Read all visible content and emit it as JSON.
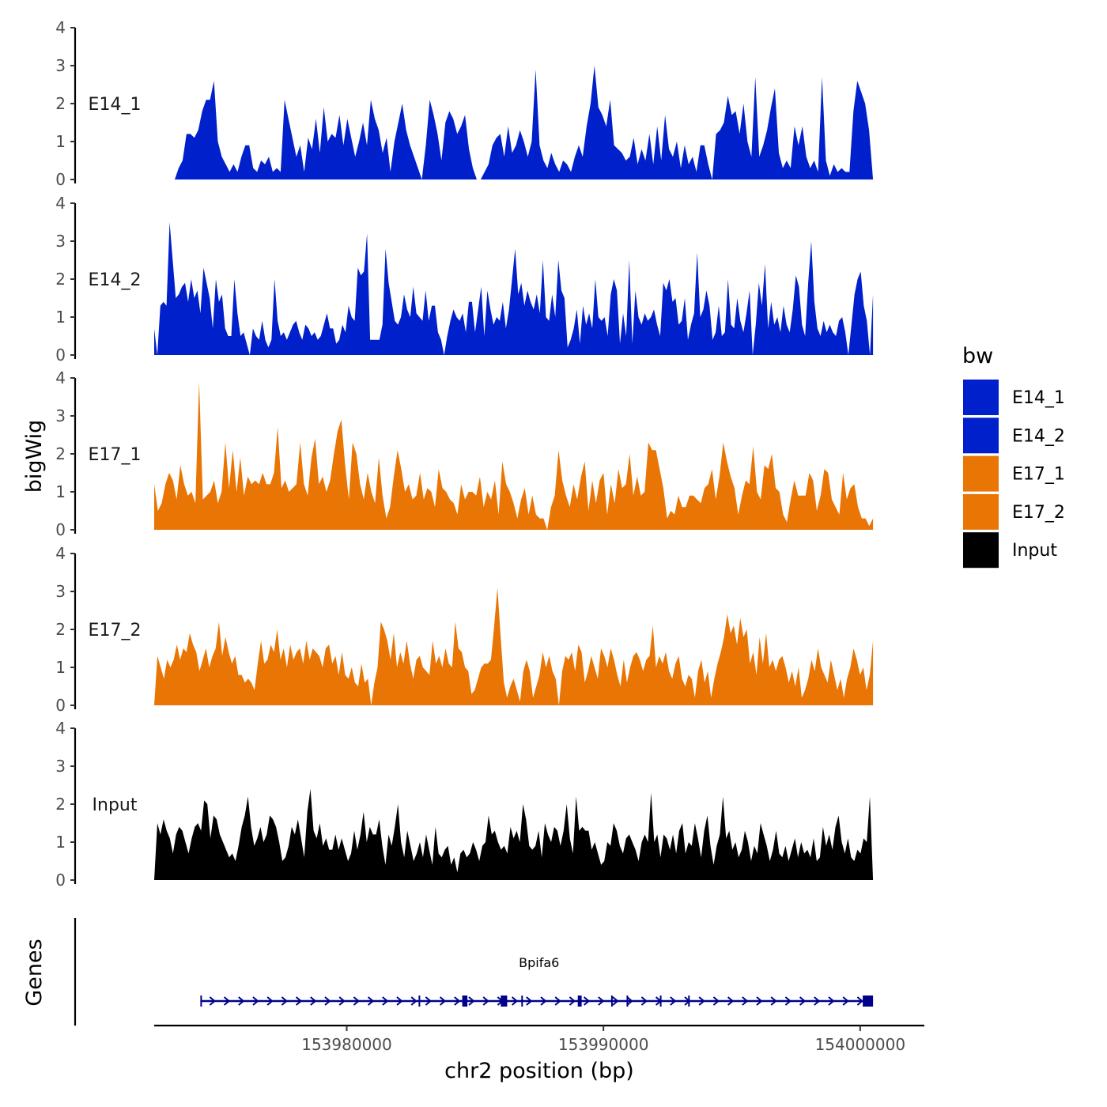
{
  "chart_data": {
    "type": "area",
    "title": "",
    "xlabel": "chr2 position (bp)",
    "ylabel": "bigWig",
    "genes_label": "Genes",
    "xlim": [
      153972500,
      154002500
    ],
    "ylim": [
      0,
      4
    ],
    "x_ticks": [
      153980000,
      153990000,
      154000000
    ],
    "x_tick_labels": [
      "153980000",
      "153990000",
      "154000000"
    ],
    "y_ticks": [
      0,
      1,
      2,
      3,
      4
    ],
    "y_tick_labels": [
      "0",
      "1",
      "2",
      "3",
      "4"
    ],
    "legend_title": "bw",
    "legend": [
      {
        "label": "E14_1",
        "color": "#0020CC"
      },
      {
        "label": "E14_2",
        "color": "#0020CC"
      },
      {
        "label": "E17_1",
        "color": "#E87504"
      },
      {
        "label": "E17_2",
        "color": "#E87504"
      },
      {
        "label": "Input",
        "color": "#000000"
      }
    ],
    "series": [
      {
        "name": "E14_1",
        "color": "#0020CC",
        "x_start": 153973300,
        "x_end": 154000500,
        "values": [
          0.0,
          0.3,
          0.5,
          1.2,
          1.2,
          1.1,
          1.3,
          1.8,
          2.1,
          2.1,
          2.6,
          1.0,
          0.6,
          0.4,
          0.2,
          0.4,
          0.2,
          0.6,
          0.9,
          0.9,
          0.3,
          0.2,
          0.5,
          0.4,
          0.6,
          0.2,
          0.3,
          0.2,
          2.1,
          1.6,
          1.1,
          0.6,
          0.9,
          0.2,
          1.1,
          0.8,
          1.6,
          0.7,
          1.9,
          1.0,
          1.2,
          1.1,
          1.7,
          0.9,
          1.6,
          1.1,
          0.6,
          1.0,
          1.5,
          0.9,
          2.1,
          1.6,
          1.3,
          0.7,
          1.1,
          0.2,
          1.0,
          1.5,
          2.0,
          1.3,
          0.9,
          0.6,
          0.3,
          0.0,
          0.9,
          2.1,
          1.7,
          1.2,
          0.5,
          1.5,
          1.8,
          1.6,
          1.2,
          1.4,
          1.7,
          0.8,
          0.3,
          0.0,
          0.0,
          0.2,
          0.4,
          0.9,
          1.1,
          1.2,
          0.6,
          1.4,
          0.7,
          0.9,
          1.3,
          1.0,
          0.6,
          1.0,
          2.9,
          0.9,
          0.5,
          0.3,
          0.7,
          0.4,
          0.2,
          0.5,
          0.4,
          0.2,
          0.6,
          0.9,
          0.6,
          1.4,
          2.0,
          3.0,
          1.9,
          1.7,
          1.4,
          2.1,
          0.9,
          0.8,
          0.7,
          0.5,
          0.6,
          1.1,
          0.4,
          0.8,
          0.5,
          1.2,
          0.4,
          1.4,
          0.5,
          1.7,
          0.8,
          0.6,
          1.0,
          0.3,
          0.9,
          0.4,
          0.6,
          0.2,
          0.9,
          0.9,
          0.4,
          0.0,
          1.2,
          1.3,
          1.5,
          2.2,
          1.7,
          1.8,
          1.2,
          2.0,
          1.0,
          0.6,
          2.7,
          0.6,
          0.9,
          1.3,
          1.9,
          2.4,
          0.7,
          0.3,
          0.5,
          0.3,
          1.4,
          0.9,
          1.4,
          0.6,
          0.3,
          0.5,
          0.2,
          2.7,
          0.5,
          0.1,
          0.4,
          0.2,
          0.3,
          0.2,
          0.2,
          1.8,
          2.6,
          2.3,
          2.0,
          1.3,
          0.0
        ]
      },
      {
        "name": "E14_2",
        "color": "#0020CC",
        "x_start": 153972500,
        "x_end": 154000500,
        "values": [
          0.7,
          0.0,
          1.3,
          1.4,
          1.3,
          3.5,
          2.5,
          1.5,
          1.6,
          1.8,
          1.9,
          1.4,
          2.0,
          1.5,
          1.7,
          1.1,
          2.3,
          1.9,
          1.5,
          0.7,
          2.0,
          1.4,
          1.6,
          0.7,
          0.5,
          0.5,
          2.0,
          1.1,
          0.5,
          0.6,
          0.3,
          0.0,
          0.7,
          0.5,
          0.4,
          0.9,
          0.4,
          0.2,
          0.4,
          2.0,
          0.9,
          0.5,
          0.6,
          0.4,
          0.6,
          0.8,
          0.9,
          0.6,
          0.4,
          0.8,
          0.7,
          0.5,
          0.6,
          0.4,
          0.5,
          0.8,
          1.1,
          0.7,
          0.7,
          0.3,
          0.4,
          0.8,
          0.6,
          1.3,
          1.0,
          0.9,
          2.3,
          2.1,
          2.2,
          3.2,
          0.4,
          0.4,
          0.4,
          0.4,
          0.8,
          2.8,
          1.9,
          1.4,
          0.9,
          0.8,
          1.0,
          1.6,
          1.2,
          1.0,
          1.8,
          1.1,
          1.0,
          0.9,
          1.7,
          0.9,
          1.3,
          1.3,
          0.6,
          0.4,
          0.0,
          0.5,
          0.9,
          1.2,
          1.0,
          0.9,
          1.1,
          0.6,
          1.4,
          1.4,
          0.6,
          1.2,
          1.8,
          0.5,
          1.7,
          1.2,
          0.8,
          1.0,
          0.9,
          1.4,
          0.7,
          1.2,
          2.0,
          2.8,
          1.6,
          1.9,
          1.3,
          1.7,
          1.4,
          1.2,
          1.6,
          1.1,
          2.5,
          1.0,
          0.9,
          1.6,
          1.0,
          2.5,
          1.7,
          1.5,
          0.2,
          0.4,
          0.7,
          1.2,
          0.3,
          1.3,
          0.8,
          1.1,
          0.7,
          2.0,
          1.0,
          0.9,
          1.0,
          0.5,
          1.6,
          2.0,
          1.7,
          0.3,
          1.1,
          0.5,
          2.5,
          0.3,
          1.7,
          1.0,
          0.8,
          1.1,
          0.9,
          1.0,
          1.2,
          0.8,
          0.5,
          1.9,
          1.7,
          2.0,
          1.4,
          1.5,
          0.8,
          0.9,
          1.5,
          0.4,
          0.8,
          1.1,
          2.7,
          1.0,
          1.2,
          1.7,
          1.3,
          0.4,
          0.6,
          1.3,
          0.5,
          0.6,
          2.0,
          0.8,
          0.7,
          1.5,
          0.9,
          0.6,
          1.1,
          1.7,
          0.0,
          0.8,
          1.9,
          1.3,
          2.4,
          0.7,
          1.4,
          0.8,
          1.0,
          0.6,
          1.3,
          0.8,
          0.6,
          1.2,
          2.1,
          1.8,
          0.8,
          0.5,
          1.9,
          3.0,
          1.4,
          0.7,
          0.5,
          0.9,
          0.6,
          0.8,
          0.6,
          0.5,
          0.9,
          1.0,
          0.6,
          0.0,
          0.8,
          1.6,
          2.0,
          2.2,
          1.3,
          0.9,
          0.0,
          1.6
        ]
      },
      {
        "name": "E17_1",
        "color": "#E87504",
        "x_start": 153972500,
        "x_end": 154000500,
        "values": [
          1.2,
          0.5,
          0.7,
          1.2,
          1.5,
          1.3,
          0.8,
          1.7,
          1.2,
          0.9,
          1.0,
          0.7,
          3.9,
          0.8,
          0.9,
          1.0,
          1.3,
          0.7,
          1.0,
          2.3,
          1.1,
          2.1,
          1.0,
          1.9,
          0.9,
          1.4,
          1.2,
          1.3,
          1.2,
          1.5,
          1.2,
          1.2,
          1.5,
          2.7,
          1.1,
          1.3,
          1.0,
          1.1,
          1.2,
          2.3,
          1.2,
          0.9,
          1.9,
          2.4,
          1.2,
          1.4,
          1.0,
          1.3,
          2.0,
          2.6,
          2.9,
          1.7,
          0.8,
          2.3,
          2.0,
          1.2,
          0.8,
          1.5,
          1.0,
          0.7,
          1.9,
          0.9,
          0.3,
          0.6,
          1.4,
          2.1,
          1.6,
          1.0,
          1.2,
          0.8,
          0.9,
          1.5,
          0.8,
          1.1,
          1.0,
          0.6,
          1.6,
          1.1,
          1.0,
          0.8,
          0.7,
          0.4,
          1.2,
          0.8,
          1.0,
          1.0,
          0.9,
          1.4,
          0.6,
          1.0,
          0.8,
          1.3,
          0.4,
          1.8,
          1.2,
          1.0,
          0.7,
          0.3,
          0.8,
          1.1,
          0.4,
          0.9,
          0.4,
          0.3,
          0.3,
          0.0,
          0.6,
          0.9,
          2.1,
          1.3,
          0.9,
          0.6,
          1.2,
          0.8,
          1.4,
          1.8,
          0.5,
          1.3,
          0.7,
          1.3,
          1.5,
          0.4,
          1.2,
          0.7,
          1.6,
          1.1,
          1.2,
          2.0,
          0.9,
          1.4,
          0.9,
          1.0,
          2.3,
          2.1,
          2.1,
          1.6,
          1.1,
          0.3,
          0.5,
          0.4,
          0.9,
          0.6,
          0.6,
          0.9,
          0.9,
          0.8,
          0.7,
          1.1,
          1.2,
          1.6,
          0.8,
          1.4,
          2.3,
          1.8,
          1.4,
          1.1,
          0.4,
          0.9,
          1.3,
          1.2,
          2.2,
          1.0,
          0.8,
          1.7,
          1.6,
          2.0,
          1.1,
          1.0,
          0.4,
          0.2,
          0.8,
          1.3,
          0.9,
          0.9,
          0.9,
          1.5,
          1.3,
          0.5,
          0.9,
          1.6,
          1.5,
          0.8,
          0.6,
          0.4,
          1.5,
          0.8,
          1.1,
          1.2,
          0.6,
          0.3,
          0.3,
          0.1,
          0.3
        ]
      },
      {
        "name": "E17_2",
        "color": "#E87504",
        "x_start": 153972500,
        "x_end": 154000500,
        "values": [
          0.0,
          1.3,
          1.0,
          0.7,
          1.2,
          1.0,
          1.2,
          1.6,
          1.2,
          1.5,
          1.4,
          1.9,
          1.6,
          1.4,
          0.9,
          1.2,
          1.5,
          1.0,
          1.3,
          1.5,
          2.2,
          1.3,
          1.8,
          1.4,
          1.1,
          1.3,
          0.8,
          0.8,
          0.6,
          0.7,
          0.6,
          0.4,
          1.1,
          1.7,
          1.1,
          1.2,
          1.6,
          1.4,
          2.0,
          1.2,
          1.5,
          1.0,
          1.6,
          1.2,
          1.4,
          1.5,
          1.1,
          1.7,
          1.2,
          1.5,
          1.4,
          1.3,
          1.0,
          1.5,
          1.6,
          1.1,
          1.3,
          0.8,
          1.4,
          0.8,
          0.7,
          1.0,
          0.6,
          0.5,
          1.1,
          0.6,
          0.7,
          0.0,
          0.6,
          1.0,
          2.2,
          2.0,
          1.7,
          1.2,
          1.9,
          1.0,
          1.4,
          1.1,
          1.7,
          1.1,
          0.7,
          1.2,
          1.3,
          1.0,
          0.9,
          0.8,
          1.7,
          1.1,
          1.3,
          1.0,
          1.5,
          1.1,
          1.0,
          2.2,
          1.5,
          1.4,
          1.0,
          0.9,
          0.3,
          0.4,
          0.7,
          1.0,
          1.1,
          1.1,
          1.2,
          2.1,
          3.1,
          1.8,
          0.6,
          0.2,
          0.5,
          0.7,
          0.4,
          0.1,
          0.9,
          1.2,
          0.9,
          0.2,
          0.5,
          0.8,
          1.4,
          1.0,
          1.3,
          0.9,
          0.7,
          0.0,
          0.9,
          1.3,
          1.2,
          1.4,
          0.9,
          1.6,
          1.4,
          0.6,
          0.9,
          1.3,
          1.0,
          0.7,
          1.5,
          1.3,
          1.0,
          1.5,
          1.2,
          0.8,
          0.5,
          1.2,
          0.6,
          1.0,
          1.3,
          1.4,
          1.2,
          0.9,
          1.2,
          1.3,
          2.1,
          1.0,
          1.3,
          1.1,
          1.4,
          0.9,
          0.7,
          1.1,
          1.3,
          0.7,
          0.5,
          0.8,
          0.7,
          0.2,
          0.9,
          1.2,
          0.6,
          0.9,
          0.2,
          0.7,
          1.1,
          1.4,
          1.8,
          2.4,
          1.9,
          2.1,
          1.6,
          2.3,
          1.8,
          2.0,
          1.1,
          1.4,
          0.8,
          1.8,
          1.1,
          1.9,
          1.0,
          1.2,
          0.9,
          1.2,
          1.3,
          1.0,
          0.6,
          0.9,
          0.5,
          1.0,
          0.2,
          0.4,
          0.7,
          1.2,
          0.9,
          1.5,
          1.0,
          0.8,
          0.6,
          1.2,
          0.8,
          0.4,
          0.7,
          0.2,
          0.7,
          1.0,
          1.5,
          1.2,
          0.8,
          1.0,
          0.4,
          0.8,
          1.7
        ]
      },
      {
        "name": "Input",
        "color": "#000000",
        "x_start": 153972500,
        "x_end": 154000500,
        "values": [
          0.0,
          1.5,
          1.2,
          1.6,
          1.3,
          1.1,
          0.7,
          1.2,
          1.4,
          1.3,
          1.0,
          0.7,
          1.1,
          1.4,
          1.5,
          1.3,
          2.1,
          2.0,
          1.1,
          1.7,
          1.6,
          1.2,
          1.0,
          0.8,
          0.6,
          0.7,
          0.5,
          0.9,
          1.4,
          1.7,
          2.2,
          1.4,
          0.9,
          1.1,
          1.4,
          1.0,
          1.2,
          1.7,
          1.6,
          1.4,
          1.0,
          0.5,
          0.6,
          0.9,
          1.4,
          1.2,
          1.6,
          1.1,
          0.6,
          1.8,
          2.4,
          1.3,
          1.1,
          1.5,
          0.9,
          1.1,
          0.8,
          0.8,
          1.2,
          0.8,
          1.1,
          0.8,
          0.5,
          0.7,
          1.3,
          0.8,
          1.2,
          1.8,
          1.0,
          1.4,
          1.2,
          1.2,
          1.6,
          0.9,
          0.4,
          1.2,
          0.9,
          1.4,
          2.0,
          1.0,
          0.6,
          1.3,
          0.9,
          0.5,
          0.7,
          1.0,
          0.6,
          1.2,
          0.8,
          0.4,
          1.4,
          0.7,
          0.6,
          0.8,
          0.9,
          0.4,
          0.6,
          0.2,
          0.7,
          0.8,
          0.6,
          0.7,
          1.0,
          0.8,
          0.5,
          0.9,
          1.0,
          1.7,
          1.2,
          1.3,
          1.0,
          0.8,
          0.9,
          0.7,
          1.4,
          1.1,
          1.3,
          1.0,
          2.0,
          1.6,
          0.9,
          0.8,
          0.9,
          1.3,
          0.6,
          1.5,
          1.2,
          1.0,
          1.4,
          1.3,
          0.9,
          1.3,
          2.0,
          1.1,
          0.7,
          2.2,
          1.3,
          1.4,
          1.3,
          1.3,
          0.8,
          1.0,
          0.7,
          0.4,
          0.5,
          1.0,
          0.9,
          1.5,
          1.3,
          0.9,
          0.7,
          1.1,
          1.2,
          1.0,
          0.8,
          0.5,
          1.0,
          1.2,
          1.0,
          2.3,
          1.0,
          1.2,
          0.6,
          1.2,
          1.1,
          0.8,
          1.2,
          0.7,
          1.3,
          1.5,
          0.7,
          1.0,
          0.9,
          1.5,
          1.1,
          0.6,
          1.3,
          1.7,
          0.9,
          0.4,
          0.9,
          1.2,
          2.2,
          1.1,
          1.3,
          0.8,
          1.0,
          0.6,
          0.8,
          1.3,
          1.0,
          0.5,
          0.9,
          0.7,
          1.5,
          1.2,
          0.9,
          0.5,
          0.8,
          1.3,
          0.7,
          0.6,
          0.9,
          0.5,
          0.8,
          1.1,
          0.6,
          1.0,
          0.7,
          0.8,
          0.6,
          1.1,
          0.5,
          0.6,
          1.4,
          0.9,
          1.2,
          0.8,
          1.4,
          1.7,
          1.0,
          0.7,
          1.1,
          0.6,
          0.5,
          0.8,
          0.7,
          1.1,
          1.0,
          2.2,
          0.0
        ]
      }
    ],
    "gene": {
      "name": "Bpifa6",
      "color": "#00008B",
      "start": 153974300,
      "end": 154000500,
      "strand": "+",
      "exons": [
        [
          153974300,
          153974350
        ],
        [
          153982800,
          153982850
        ],
        [
          153984500,
          153984700
        ],
        [
          153986000,
          153986250
        ],
        [
          153986800,
          153986850
        ],
        [
          153989000,
          153989150
        ],
        [
          153990300,
          153990350
        ],
        [
          153990900,
          153990950
        ],
        [
          153992200,
          153992250
        ],
        [
          153993300,
          153993350
        ],
        [
          154000100,
          154000500
        ]
      ]
    }
  }
}
